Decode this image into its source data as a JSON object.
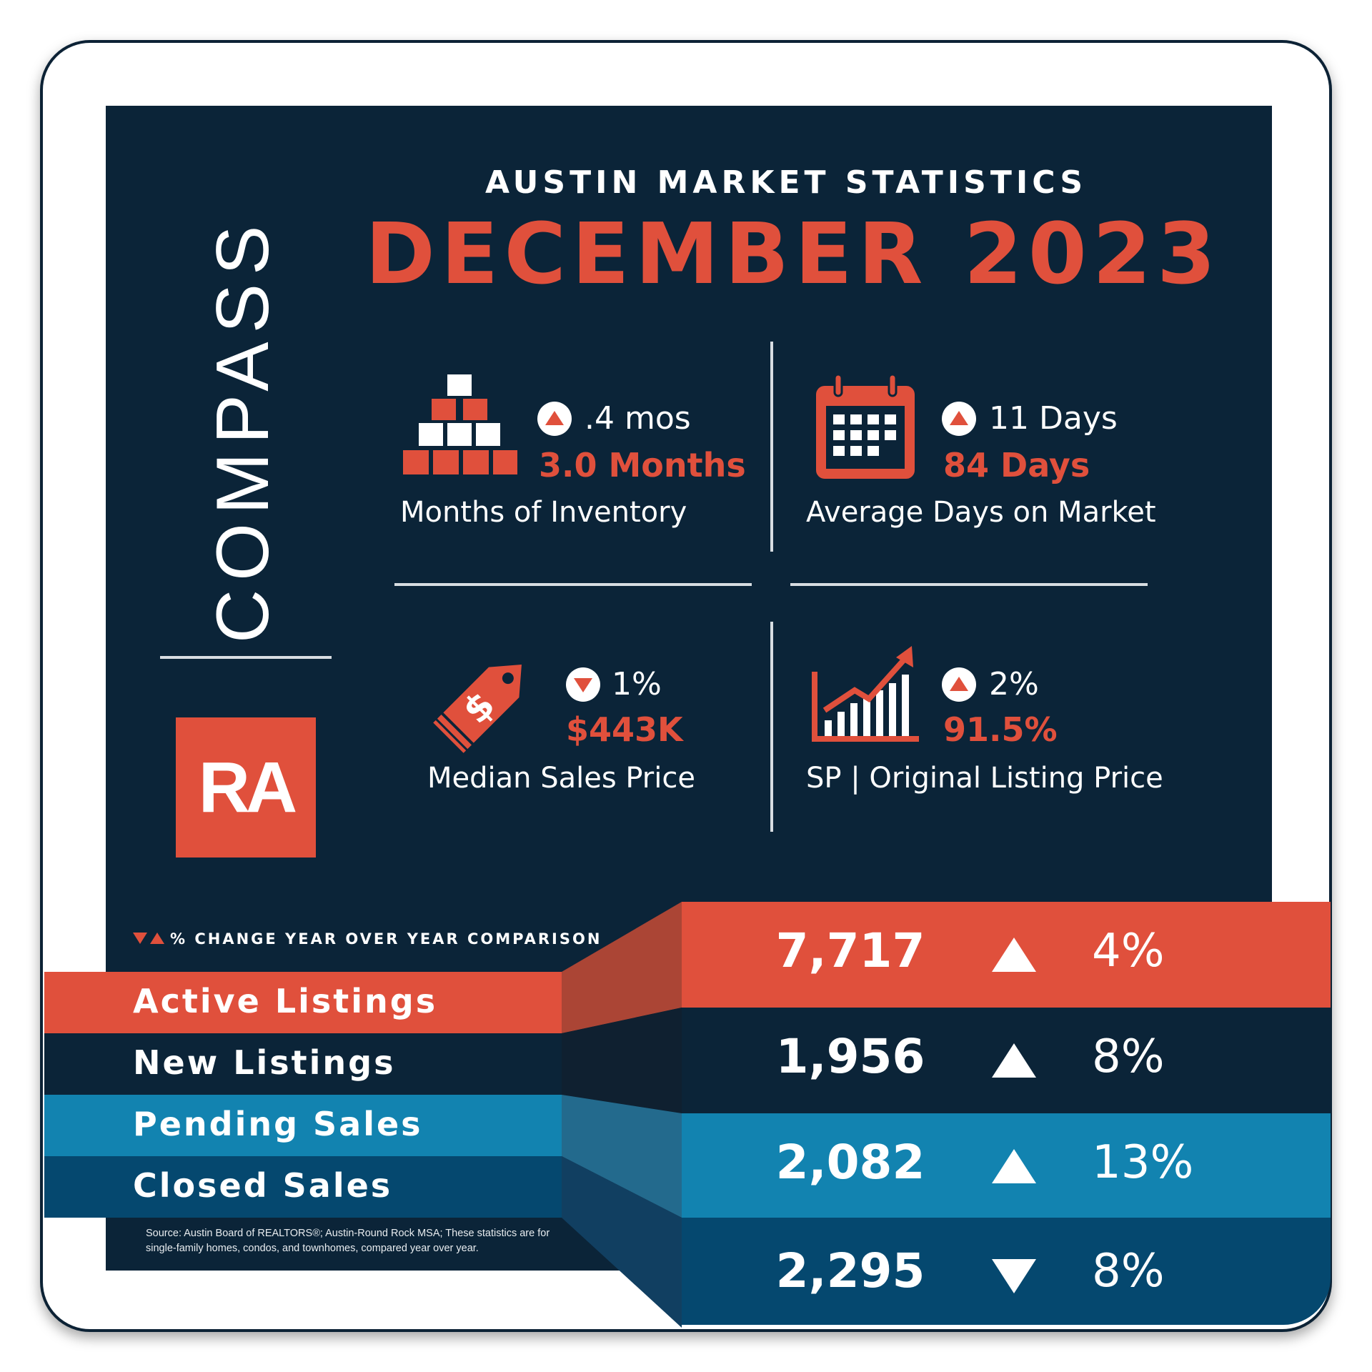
{
  "brand": {
    "compass": "COMPASS",
    "logo_text": "RA"
  },
  "heading": {
    "small": "AUSTIN MARKET STATISTICS",
    "big": "DECEMBER 2023"
  },
  "stats": [
    {
      "change": ".4 mos",
      "direction": "up",
      "value": "3.0 Months",
      "label": "Months of Inventory",
      "icon": "boxes-icon"
    },
    {
      "change": "11 Days",
      "direction": "up",
      "value": "84 Days",
      "label": "Average Days on Market",
      "icon": "calendar-icon"
    },
    {
      "change": "1%",
      "direction": "down",
      "value": "$443K",
      "label": "Median Sales Price",
      "icon": "price-tag-icon"
    },
    {
      "change": "2%",
      "direction": "up",
      "value": "91.5%",
      "label": "SP | Original Listing Price",
      "icon": "bar-chart-icon"
    }
  ],
  "legend": "% CHANGE YEAR OVER YEAR COMPARISON",
  "rows": [
    {
      "label": "Active Listings",
      "value": "7,717",
      "direction": "up",
      "change": "4%"
    },
    {
      "label": "New Listings",
      "value": "1,956",
      "direction": "up",
      "change": "8%"
    },
    {
      "label": "Pending Sales",
      "value": "2,082",
      "direction": "up",
      "change": "13%"
    },
    {
      "label": "Closed Sales",
      "value": "2,295",
      "direction": "down",
      "change": "8%"
    }
  ],
  "source": "Source: Austin Board of REALTORS®; Austin-Round Rock MSA; These statistics are for single-family homes, condos, and townhomes, compared year over year.",
  "colors": {
    "navy": "#0b2438",
    "red": "#e0503c",
    "blue": "#1283b0",
    "dark_blue": "#05486f"
  }
}
